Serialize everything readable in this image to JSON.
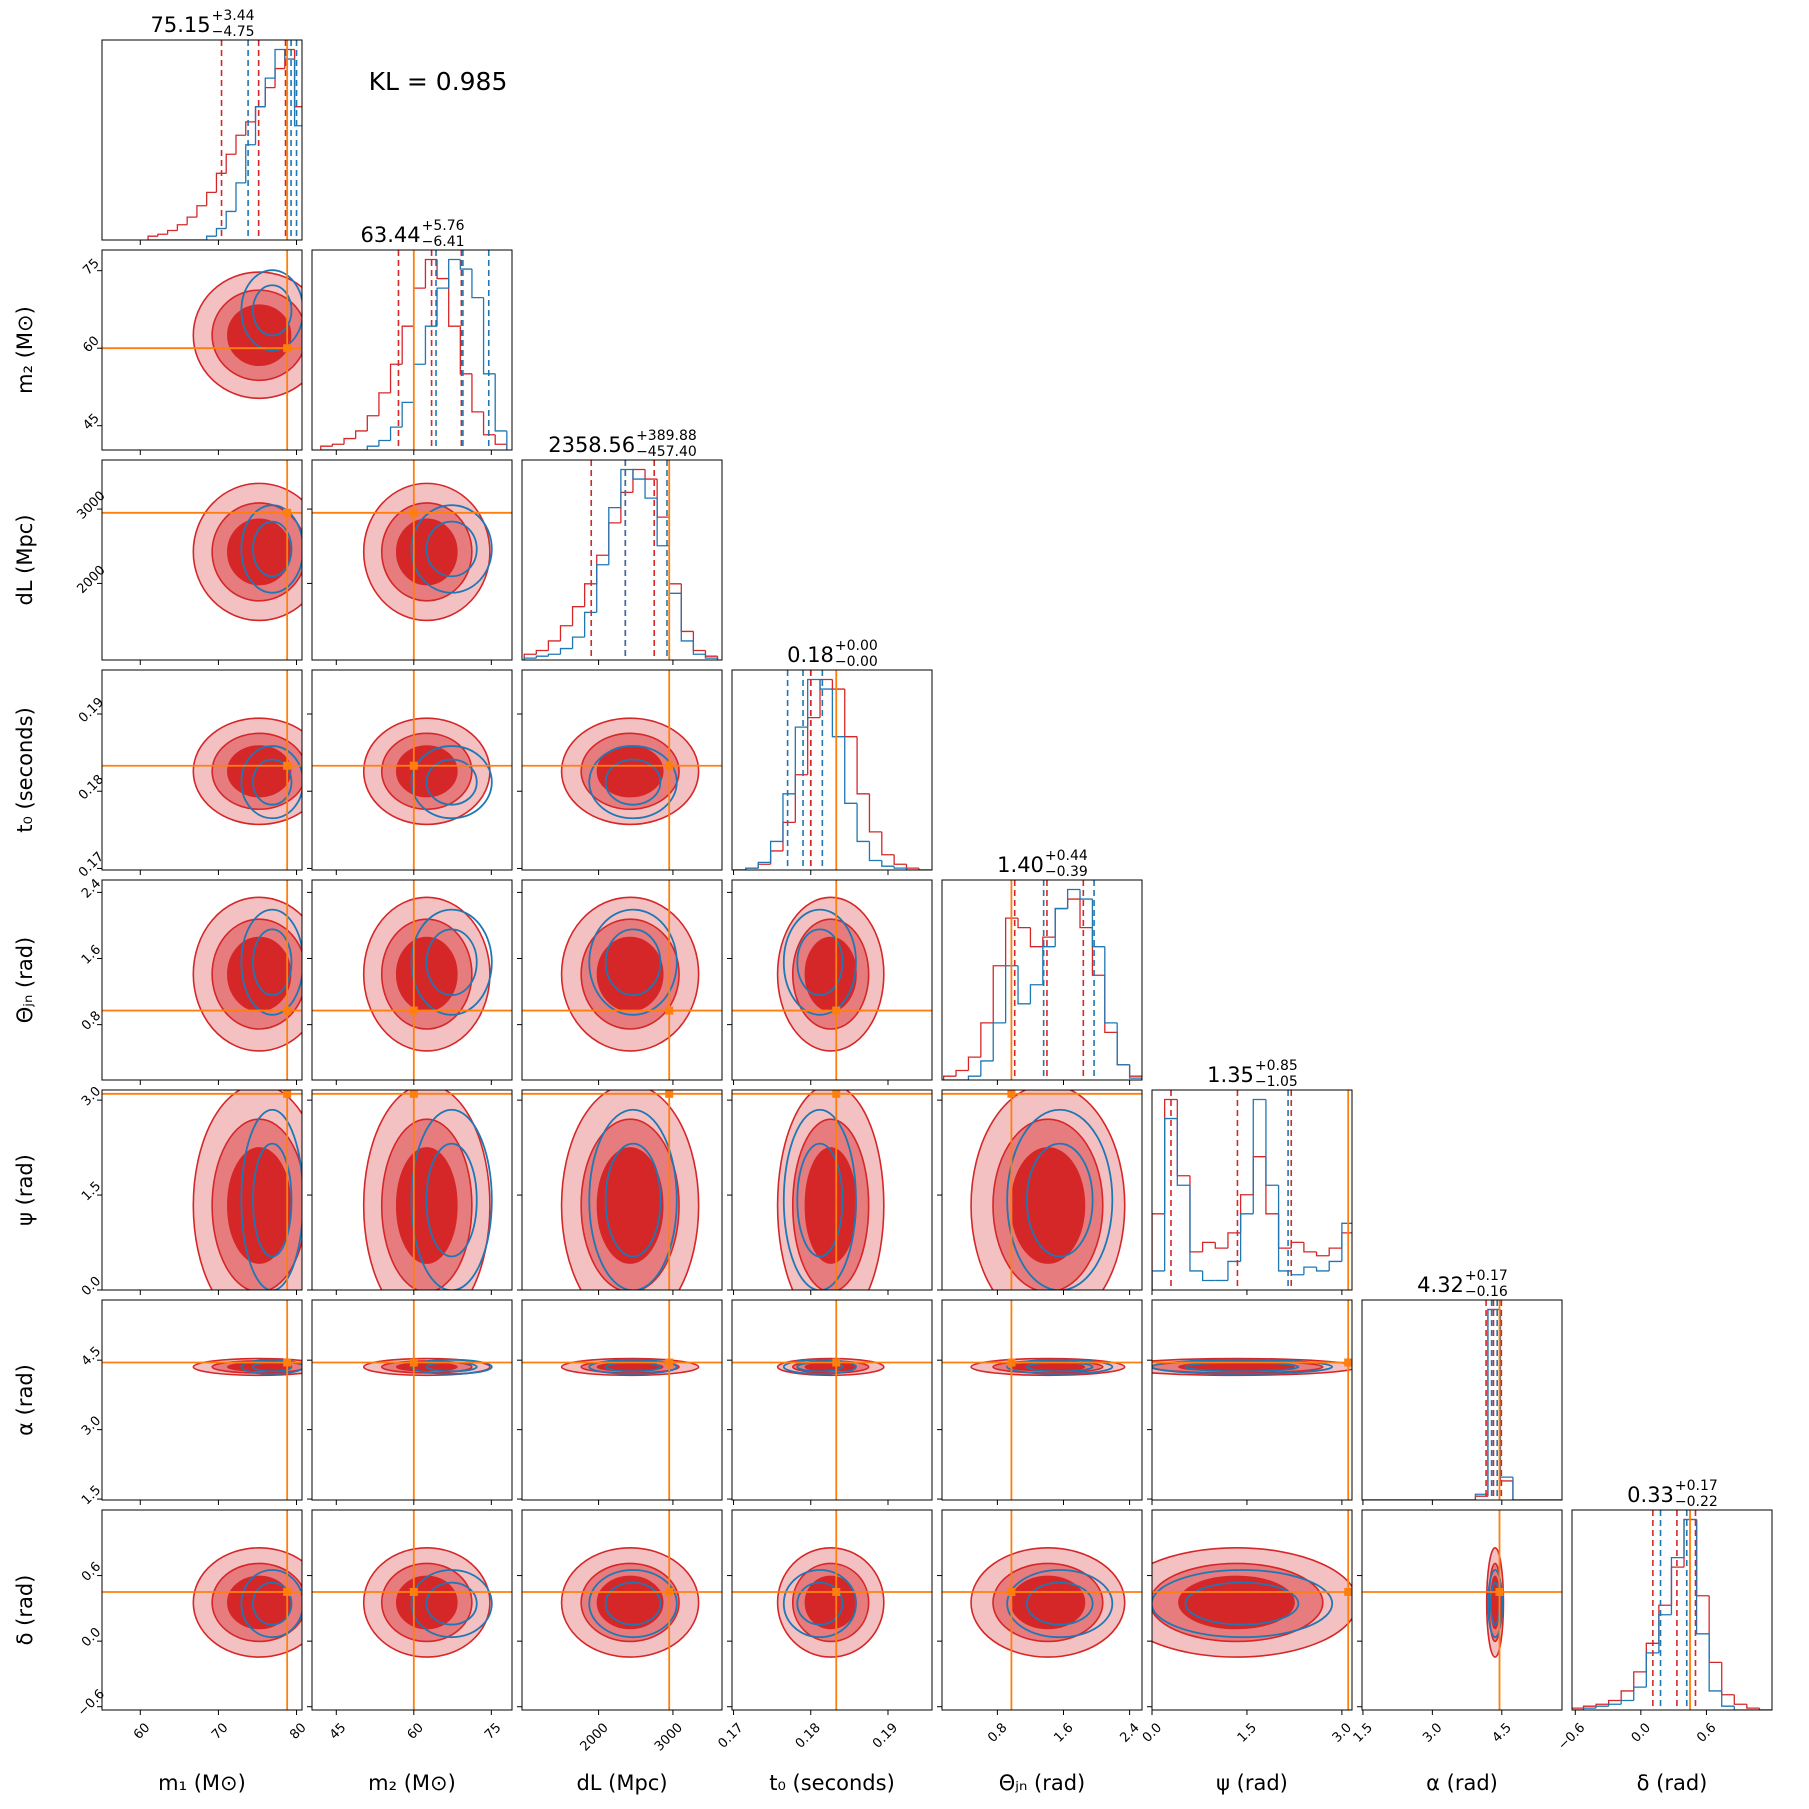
{
  "chart_data": {
    "type": "corner",
    "annotation": "KL = 0.985",
    "hist_colors": [
      "#d62728",
      "#1f77b4"
    ],
    "truth_color": "#ff7f0e",
    "params": [
      {
        "label": "m₁ (M⊙)",
        "lim": [
          55.1,
          80.7
        ],
        "ticks": [
          60,
          70,
          80
        ],
        "truth": 78.8,
        "title": {
          "median": 75.15,
          "plus": {
            "value": 3.44,
            "label": "+3.44"
          },
          "minus": {
            "value": -4.75,
            "label": "−4.75"
          }
        },
        "blue_quantiles": [
          73.8,
          79.3,
          80.0
        ],
        "bins": [
          61,
          62.25,
          63.5,
          64.75,
          66,
          67.25,
          68.5,
          69.75,
          71,
          72.25,
          73.5,
          74.75,
          76,
          77.25,
          78.5,
          79.75,
          81
        ],
        "series": [
          {
            "values": [
              2,
              3,
              5,
              8,
              12,
              18,
              25,
              35,
              45,
              55,
              62,
              70,
              80,
              90,
              100,
              70
            ]
          },
          {
            "values": [
              0,
              0,
              0,
              0,
              0,
              0,
              2,
              6,
              15,
              30,
              50,
              70,
              85,
              100,
              95,
              60
            ]
          }
        ]
      },
      {
        "label": "m₂ (M⊙)",
        "lim": [
          40.3,
          79.0
        ],
        "ticks": [
          45,
          60,
          75
        ],
        "truth": 60,
        "title": {
          "median": 63.44,
          "plus": {
            "value": 5.76,
            "label": "+5.76"
          },
          "minus": {
            "value": -6.41,
            "label": "−6.41"
          }
        },
        "blue_quantiles": [
          64.3,
          69.5,
          74.5
        ],
        "bins": [
          42,
          44.25,
          46.5,
          48.75,
          51,
          53.25,
          55.5,
          57.75,
          60,
          62.25,
          64.5,
          66.75,
          69,
          71.25,
          73.5,
          75.75,
          78
        ],
        "series": [
          {
            "values": [
              2,
              3,
              6,
              10,
              18,
              30,
              45,
              65,
              85,
              100,
              90,
              65,
              40,
              20,
              8,
              3
            ]
          },
          {
            "values": [
              0,
              0,
              0,
              0,
              2,
              5,
              12,
              25,
              45,
              65,
              85,
              100,
              95,
              80,
              40,
              10
            ]
          }
        ]
      },
      {
        "label": "dL (Mpc)",
        "lim": [
          970,
          3660
        ],
        "ticks": [
          2000,
          3000
        ],
        "truth": 2950,
        "title": {
          "median": 2358.56,
          "plus": {
            "value": 389.88,
            "label": "+389.88"
          },
          "minus": {
            "value": -457.4,
            "label": "−457.40"
          }
        },
        "blue_quantiles": [
          2360,
          2920
        ],
        "bins": [
          1000,
          1162.5,
          1325,
          1487.5,
          1650,
          1812.5,
          1975,
          2137.5,
          2300,
          2462.5,
          2625,
          2787.5,
          2950,
          3112.5,
          3275,
          3437.5,
          3600
        ],
        "series": [
          {
            "values": [
              3,
              5,
              10,
              18,
              28,
              40,
              55,
              72,
              88,
              100,
              95,
              75,
              40,
              15,
              5,
              2
            ]
          },
          {
            "values": [
              1,
              2,
              3,
              6,
              12,
              25,
              50,
              80,
              100,
              95,
              85,
              60,
              35,
              10,
              3,
              1
            ]
          }
        ]
      },
      {
        "label": "t₀ (seconds)",
        "lim": [
          0.1698,
          0.1957
        ],
        "ticks": [
          0.17,
          0.18,
          0.19
        ],
        "truth": 0.1833,
        "title": {
          "median": 0.18,
          "plus": {
            "value": 0,
            "label": "+0.00"
          },
          "minus": {
            "value": 0,
            "label": "−0.00"
          }
        },
        "blue_quantiles": [
          0.177,
          0.179,
          0.1815
        ],
        "bins": [
          0.17,
          0.1716,
          0.1732,
          0.1748,
          0.1764,
          0.178,
          0.1796,
          0.1812,
          0.1828,
          0.1844,
          0.186,
          0.1876,
          0.1892,
          0.1908,
          0.1924,
          0.194,
          0.1956
        ],
        "series": [
          {
            "values": [
              0,
              1,
              3,
              10,
              25,
              50,
              80,
              100,
              95,
              70,
              40,
              20,
              8,
              3,
              1,
              0
            ]
          },
          {
            "values": [
              0,
              1,
              4,
              15,
              40,
              75,
              100,
              95,
              70,
              35,
              15,
              5,
              2,
              1,
              0,
              0
            ]
          }
        ]
      },
      {
        "label": "Θⱼₙ (rad)",
        "lim": [
          0.13,
          2.55
        ],
        "ticks": [
          0.8,
          1.6,
          2.4
        ],
        "truth": 0.97,
        "title": {
          "median": {
            "value": 1.4,
            "label": "1.40"
          },
          "plus": {
            "value": 0.44,
            "label": "+0.44"
          },
          "minus": {
            "value": -0.39,
            "label": "−0.39"
          }
        },
        "blue_quantiles": [
          1.36,
          1.97
        ],
        "bins": [
          0.15,
          0.3,
          0.45,
          0.6,
          0.75,
          0.9,
          1.05,
          1.2,
          1.35,
          1.5,
          1.65,
          1.8,
          1.95,
          2.1,
          2.25,
          2.4,
          2.55
        ],
        "series": [
          {
            "values": [
              2,
              5,
              12,
              30,
              60,
              85,
              80,
              70,
              75,
              90,
              95,
              80,
              55,
              25,
              8,
              2
            ]
          },
          {
            "values": [
              0,
              0,
              2,
              10,
              30,
              60,
              40,
              50,
              70,
              90,
              100,
              95,
              70,
              30,
              8,
              1
            ]
          }
        ]
      },
      {
        "label": "ψ (rad)",
        "lim": [
          0,
          3.16
        ],
        "ticks": [
          {
            "value": 0,
            "label": "0.0"
          },
          1.5,
          {
            "value": 3,
            "label": "3.0"
          }
        ],
        "truth": 3.1,
        "title": {
          "median": 1.35,
          "plus": {
            "value": 0.85,
            "label": "+0.85"
          },
          "minus": {
            "value": -1.05,
            "label": "−1.05"
          }
        },
        "blue_quantiles": [
          2.15
        ],
        "bins": [
          0,
          0.2,
          0.4,
          0.6,
          0.8,
          1.0,
          1.2,
          1.4,
          1.6,
          1.8,
          2.0,
          2.2,
          2.4,
          2.6,
          2.8,
          3.0,
          3.2
        ],
        "series": [
          {
            "values": [
              40,
              100,
              60,
              20,
              25,
              22,
              30,
              50,
              70,
              40,
              22,
              25,
              20,
              18,
              22,
              30
            ]
          },
          {
            "values": [
              10,
              90,
              55,
              10,
              5,
              5,
              15,
              40,
              100,
              55,
              10,
              8,
              12,
              10,
              15,
              35
            ]
          }
        ]
      },
      {
        "label": "α (rad)",
        "lim": [
          1.48,
          5.8
        ],
        "ticks": [
          1.5,
          {
            "value": 3,
            "label": "3.0"
          },
          4.5
        ],
        "truth": 4.45,
        "title": {
          "median": 4.32,
          "plus": {
            "value": 0.17,
            "label": "+0.17"
          },
          "minus": {
            "value": -0.16,
            "label": "−0.16"
          }
        },
        "blue_quantiles": [
          4.28,
          4.4
        ],
        "bins": [
          1.5,
          1.77,
          2.04,
          2.31,
          2.58,
          2.85,
          3.12,
          3.39,
          3.66,
          3.93,
          4.2,
          4.47,
          4.74,
          5.01,
          5.28,
          5.55,
          5.82
        ],
        "series": [
          {
            "values": [
              0,
              0,
              0,
              0,
              0,
              0,
              0,
              0,
              0,
              2,
              100,
              10,
              0,
              0,
              0,
              0
            ]
          },
          {
            "values": [
              0,
              0,
              0,
              0,
              0,
              0,
              0,
              0,
              0,
              3,
              100,
              12,
              0,
              0,
              0,
              0
            ]
          }
        ]
      },
      {
        "label": "δ (rad)",
        "lim": [
          -0.63,
          1.2
        ],
        "ticks": [
          {
            "value": -0.6,
            "label": "−0.6"
          },
          {
            "value": 0,
            "label": "0.0"
          },
          0.6
        ],
        "truth": 0.45,
        "title": {
          "median": 0.33,
          "plus": {
            "value": 0.17,
            "label": "+0.17"
          },
          "minus": {
            "value": -0.22,
            "label": "−0.22"
          }
        },
        "blue_quantiles": [
          0.18,
          0.42
        ],
        "bins": [
          -0.64,
          -0.525,
          -0.41,
          -0.295,
          -0.18,
          -0.065,
          0.05,
          0.165,
          0.28,
          0.395,
          0.51,
          0.625,
          0.74,
          0.855,
          0.97,
          1.085,
          1.2
        ],
        "series": [
          {
            "values": [
              1,
              2,
              3,
              5,
              10,
              20,
              35,
              55,
              75,
              100,
              60,
              25,
              8,
              3,
              1,
              0
            ]
          },
          {
            "values": [
              0,
              1,
              2,
              3,
              5,
              12,
              30,
              50,
              80,
              100,
              40,
              10,
              2,
              0,
              0,
              0
            ]
          }
        ]
      }
    ]
  }
}
